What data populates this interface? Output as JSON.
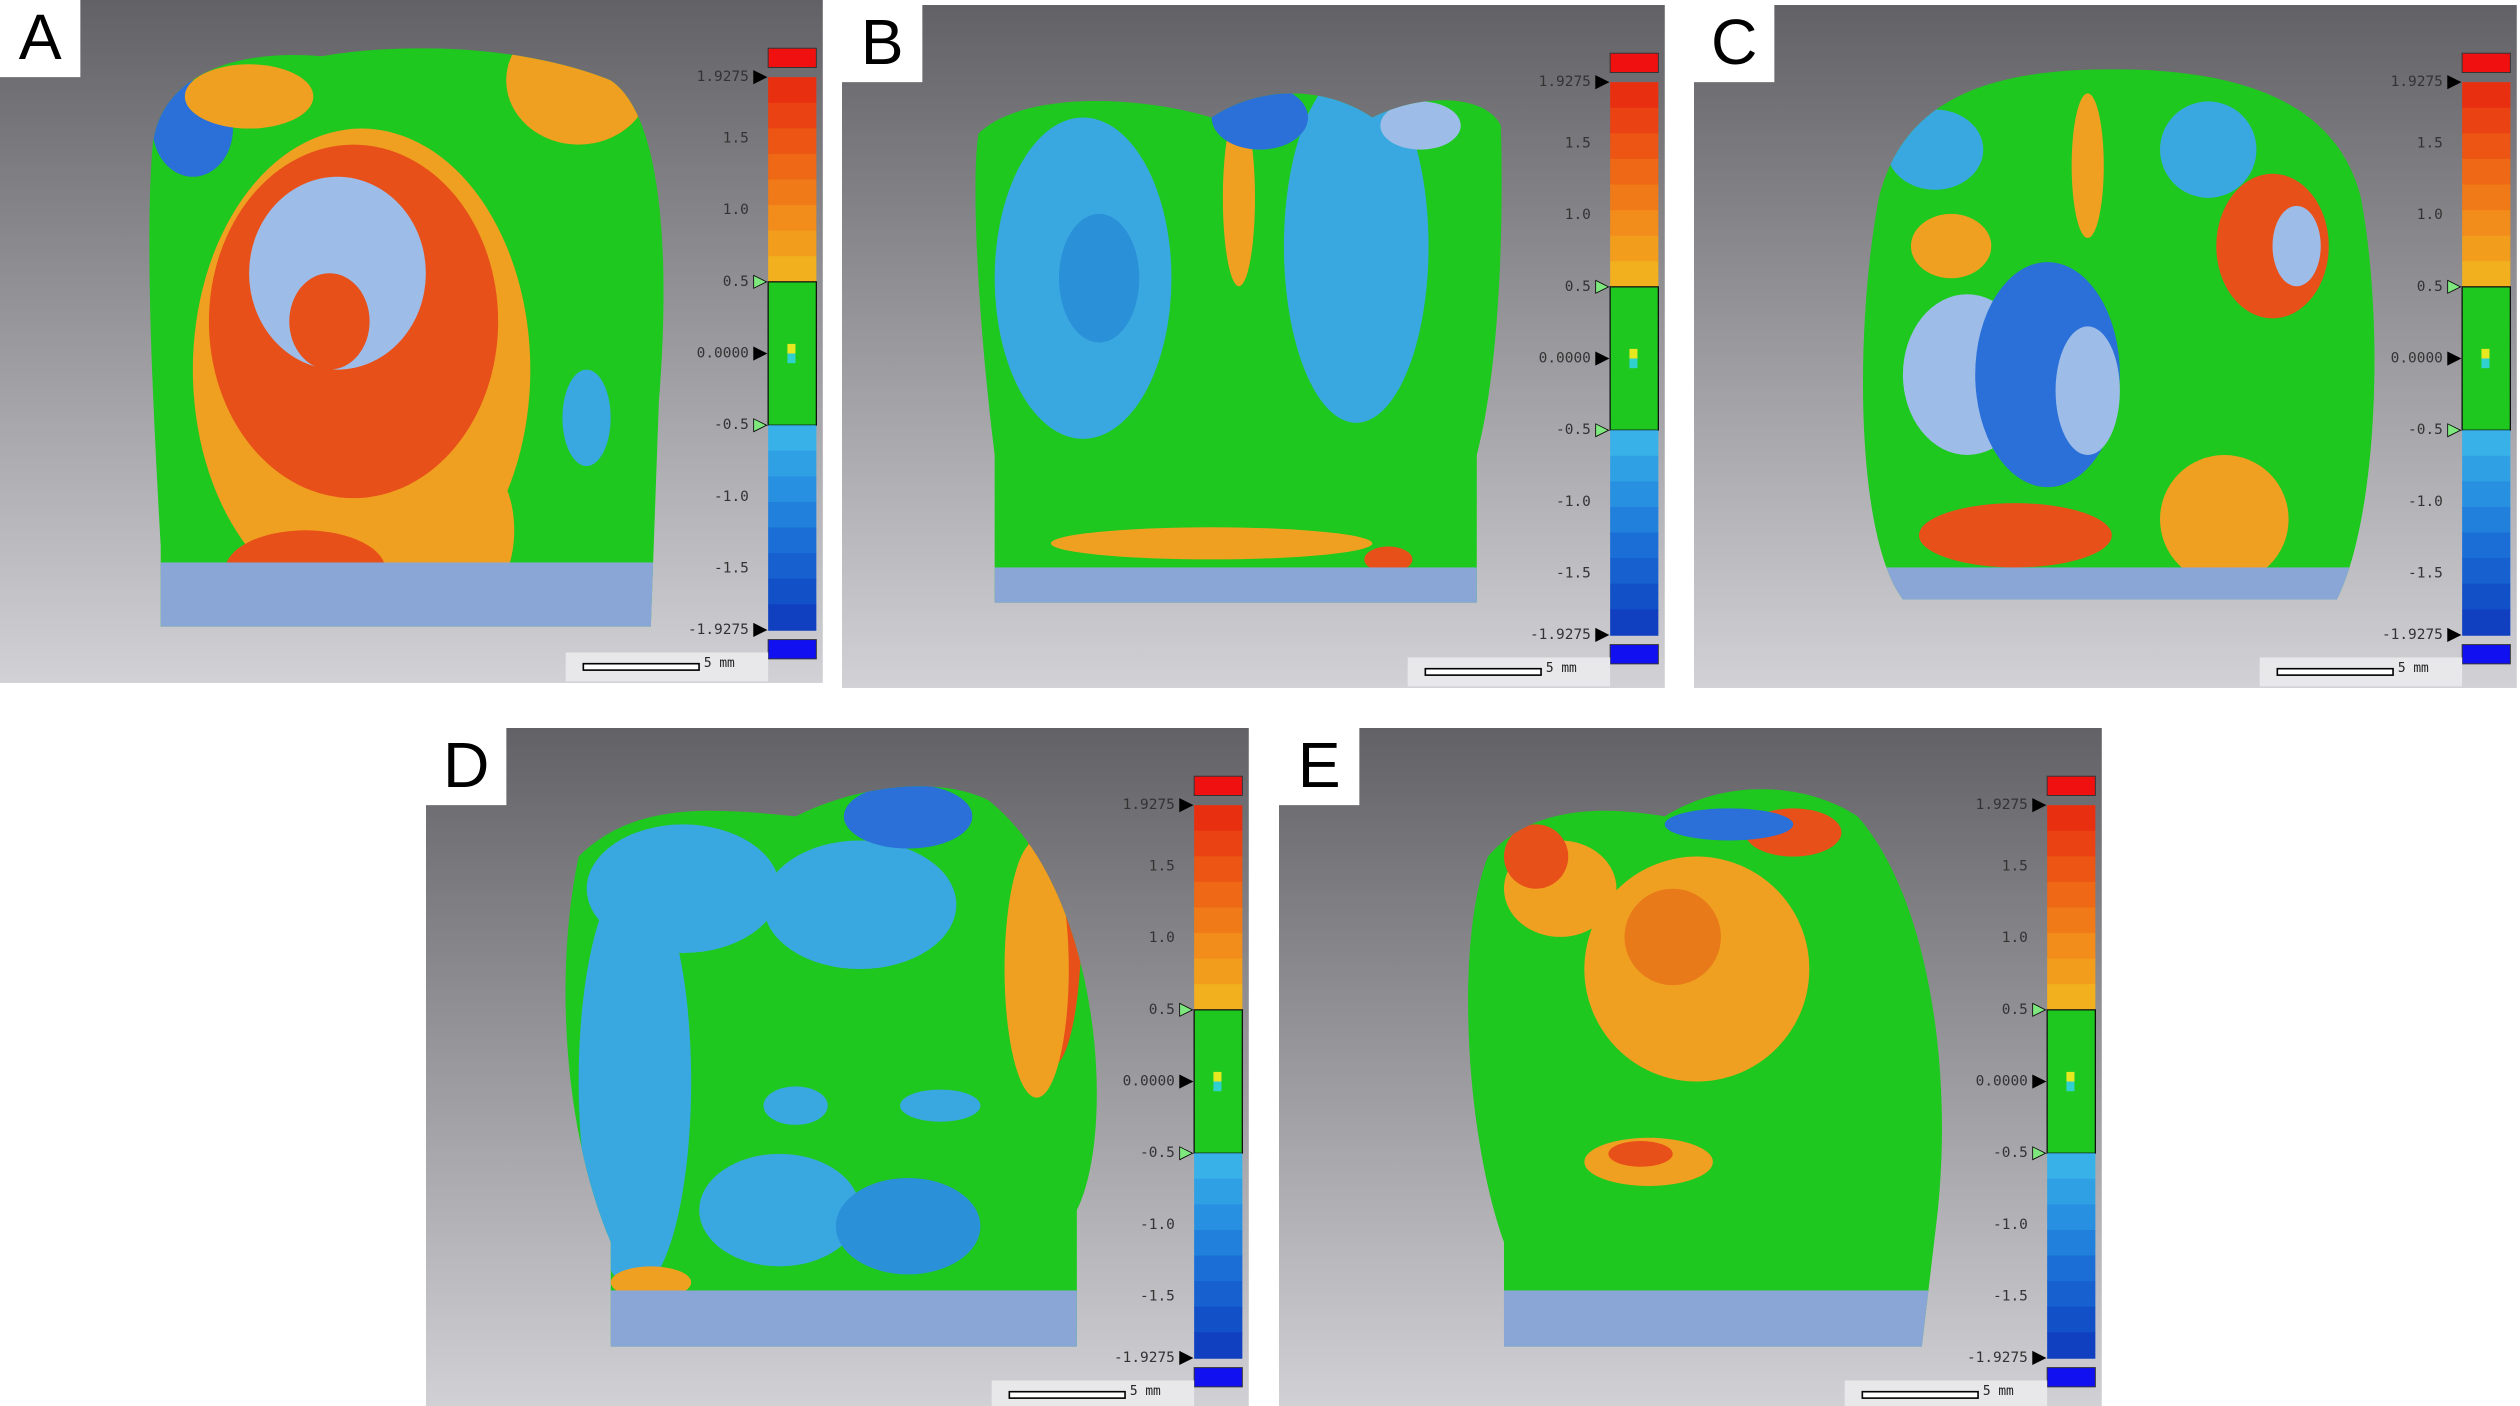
{
  "panels": [
    {
      "label": "A",
      "colorbar_ticks": [
        "1.9275",
        "1.5",
        "1.0",
        "0.5",
        "0.0000",
        "-0.5",
        "-1.0",
        "-1.5",
        "-1.9275"
      ],
      "scale_label": "5 mm"
    },
    {
      "label": "B",
      "colorbar_ticks": [
        "1.9275",
        "1.5",
        "1.0",
        "0.5",
        "0.0000",
        "-0.5",
        "-1.0",
        "-1.5",
        "-1.9275"
      ],
      "scale_label": "5 mm"
    },
    {
      "label": "C",
      "colorbar_ticks": [
        "1.9275",
        "1.5",
        "1.0",
        "0.5",
        "0.0000",
        "-0.5",
        "-1.0",
        "-1.5",
        "-1.9275"
      ],
      "scale_label": "5 mm"
    },
    {
      "label": "D",
      "colorbar_ticks": [
        "1.9275",
        "1.5",
        "1.0",
        "0.5",
        "0.0000",
        "-0.5",
        "-1.0",
        "-1.5",
        "-1.9275"
      ],
      "scale_label": "5 mm"
    },
    {
      "label": "E",
      "colorbar_ticks": [
        "1.9275",
        "1.5",
        "1.0",
        "0.5",
        "0.0000",
        "-0.5",
        "-1.0",
        "-1.5",
        "-1.9275"
      ],
      "scale_label": "5 mm"
    }
  ]
}
